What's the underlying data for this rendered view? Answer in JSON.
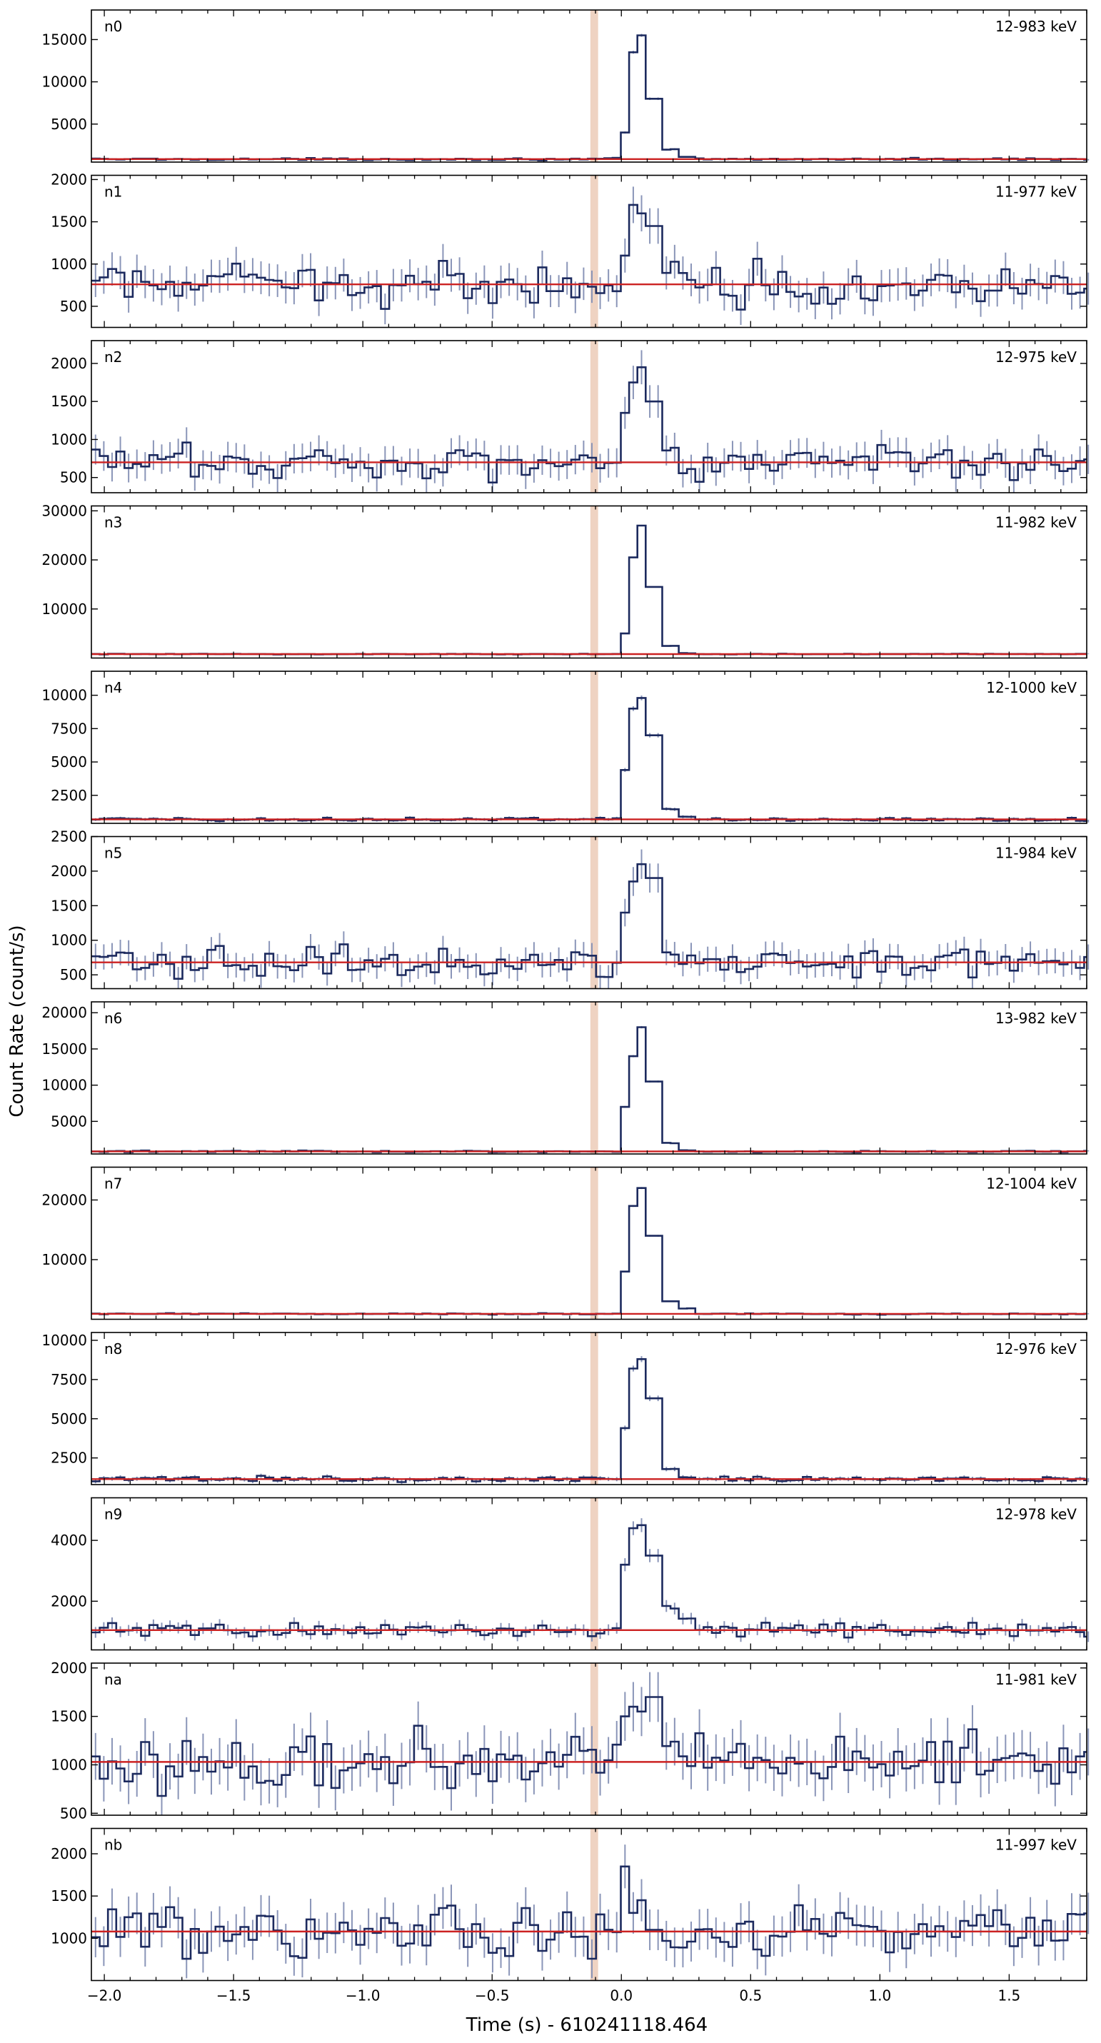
{
  "chart_data": {
    "type": "line",
    "ylabel": "Count Rate (count/s)",
    "xlabel": "Time (s) - 610241118.464",
    "xlim": [
      -2.05,
      1.8
    ],
    "x_ticks": [
      -2.0,
      -1.5,
      -1.0,
      -0.5,
      0.0,
      0.5,
      1.0,
      1.5
    ],
    "x_tick_labels": [
      "−2.0",
      "−1.5",
      "−1.0",
      "−0.5",
      "0.0",
      "0.5",
      "1.0",
      "1.5"
    ],
    "bin_width": 0.032,
    "shaded_interval": [
      -0.12,
      -0.09
    ],
    "colors": {
      "lightcurve": "#1c2a5e",
      "errorbar": "#8a95b8",
      "background": "#cc2222",
      "shade": "#efd3c2"
    },
    "panels": [
      {
        "name": "n0",
        "energy": "12-983 keV",
        "ylim": [
          500,
          18500
        ],
        "yticks": [
          5000,
          10000,
          15000
        ],
        "background_level": 850,
        "noise_sigma": 80,
        "peak_t": [
          0.0,
          0.05,
          0.1
        ],
        "peak": [
          4000,
          13500,
          15500,
          8000
        ],
        "peak_decay": [
          2000,
          1100
        ]
      },
      {
        "name": "n1",
        "energy": "11-977 keV",
        "ylim": [
          250,
          2050
        ],
        "yticks": [
          500,
          1000,
          1500,
          2000
        ],
        "background_level": 760,
        "noise_sigma": 160,
        "peak_t": [
          0.0,
          0.05,
          0.1
        ],
        "peak": [
          1100,
          1700,
          1600,
          1450
        ],
        "peak_decay": [
          1000,
          900
        ]
      },
      {
        "name": "n2",
        "energy": "12-975 keV",
        "ylim": [
          300,
          2300
        ],
        "yticks": [
          500,
          1000,
          1500,
          2000
        ],
        "background_level": 700,
        "noise_sigma": 160,
        "peak_t": [
          0.0,
          0.05,
          0.1
        ],
        "peak": [
          1350,
          1750,
          1950,
          1500
        ],
        "peak_decay": [
          900,
          600
        ]
      },
      {
        "name": "n3",
        "energy": "11-982 keV",
        "ylim": [
          0,
          31000
        ],
        "yticks": [
          10000,
          20000,
          30000
        ],
        "background_level": 800,
        "noise_sigma": 60,
        "peak_t": [
          0.0,
          0.05,
          0.1
        ],
        "peak": [
          5000,
          20500,
          27000,
          14500
        ],
        "peak_decay": [
          2500,
          1000
        ]
      },
      {
        "name": "n4",
        "energy": "12-1000 keV",
        "ylim": [
          400,
          11800
        ],
        "yticks": [
          2500,
          5000,
          7500,
          10000
        ],
        "background_level": 700,
        "noise_sigma": 90,
        "peak_t": [
          0.0,
          0.05,
          0.1
        ],
        "peak": [
          4400,
          9000,
          9800,
          7000
        ],
        "peak_decay": [
          1500,
          900
        ]
      },
      {
        "name": "n5",
        "energy": "11-984 keV",
        "ylim": [
          300,
          2500
        ],
        "yticks": [
          500,
          1000,
          1500,
          2000,
          2500
        ],
        "background_level": 680,
        "noise_sigma": 150,
        "peak_t": [
          0.0,
          0.05,
          0.1
        ],
        "peak": [
          1400,
          1850,
          2100,
          1900
        ],
        "peak_decay": [
          800,
          700
        ]
      },
      {
        "name": "n6",
        "energy": "13-982 keV",
        "ylim": [
          500,
          21500
        ],
        "yticks": [
          5000,
          10000,
          15000,
          20000
        ],
        "background_level": 850,
        "noise_sigma": 70,
        "peak_t": [
          0.0,
          0.05,
          0.1
        ],
        "peak": [
          7000,
          14000,
          18000,
          10500
        ],
        "peak_decay": [
          2000,
          1000
        ]
      },
      {
        "name": "n7",
        "energy": "12-1004 keV",
        "ylim": [
          0,
          25500
        ],
        "yticks": [
          10000,
          20000
        ],
        "background_level": 900,
        "noise_sigma": 70,
        "peak_t": [
          0.0,
          0.05,
          0.1
        ],
        "peak": [
          8000,
          19000,
          22000,
          14000
        ],
        "peak_decay": [
          3000,
          1800
        ]
      },
      {
        "name": "n8",
        "energy": "12-976 keV",
        "ylim": [
          800,
          10500
        ],
        "yticks": [
          2500,
          5000,
          7500,
          10000
        ],
        "background_level": 1150,
        "noise_sigma": 110,
        "peak_t": [
          0.0,
          0.05,
          0.1
        ],
        "peak": [
          4400,
          8200,
          8800,
          6300
        ],
        "peak_decay": [
          1800,
          1300
        ]
      },
      {
        "name": "n9",
        "energy": "12-978 keV",
        "ylim": [
          400,
          5400
        ],
        "yticks": [
          2000,
          4000
        ],
        "background_level": 1050,
        "noise_sigma": 150,
        "peak_t": [
          0.0,
          0.05,
          0.1
        ],
        "peak": [
          3200,
          4400,
          4500,
          3500
        ],
        "peak_decay": [
          1800,
          1400
        ]
      },
      {
        "name": "na",
        "energy": "11-981 keV",
        "ylim": [
          480,
          2050
        ],
        "yticks": [
          500,
          1000,
          1500,
          2000
        ],
        "background_level": 1030,
        "noise_sigma": 200,
        "peak_t": [
          0.0,
          0.05,
          0.1
        ],
        "peak": [
          1500,
          1600,
          1550,
          1700
        ],
        "peak_decay": [
          1200,
          1100
        ]
      },
      {
        "name": "nb",
        "energy": "11-997 keV",
        "ylim": [
          500,
          2300
        ],
        "yticks": [
          1000,
          1500,
          2000
        ],
        "background_level": 1080,
        "noise_sigma": 200,
        "peak_t": [
          0.0,
          0.05,
          0.1
        ],
        "peak": [
          1850,
          1300,
          1450,
          1100
        ],
        "peak_decay": [
          900,
          950
        ]
      }
    ]
  }
}
